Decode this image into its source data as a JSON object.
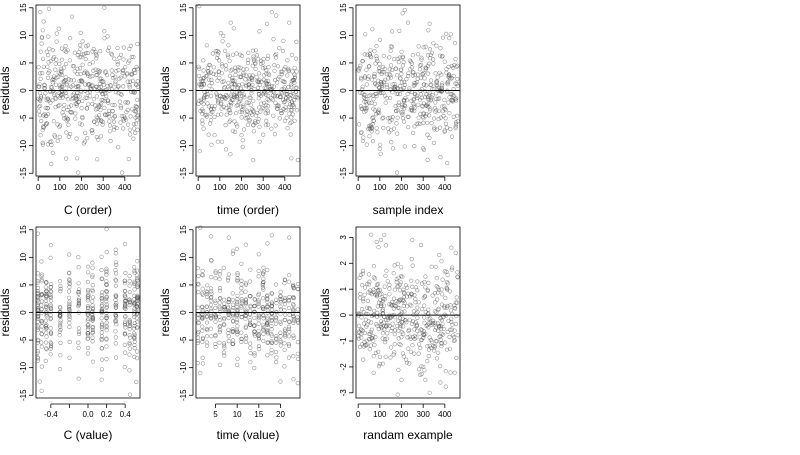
{
  "chart_data": [
    {
      "type": "scatter",
      "xlabel": "C (order)",
      "ylabel": "residuals",
      "xlim": [
        -10,
        470
      ],
      "ylim": [
        -15.5,
        15.5
      ],
      "xticks": [
        0,
        100,
        200,
        300,
        400
      ],
      "yticks": [
        -15,
        -10,
        -5,
        0,
        5,
        10,
        15
      ],
      "hline": 0,
      "n_points": 460,
      "series": [
        {
          "points": [
            [
              10,
              14.2
            ],
            [
              16,
              8.5
            ],
            [
              22,
              -9.8
            ],
            [
              25,
              12.5
            ],
            [
              48,
              5.1
            ],
            [
              60,
              -13.3
            ],
            [
              78,
              -8.4
            ],
            [
              95,
              11.2
            ],
            [
              110,
              7.6
            ],
            [
              140,
              -6.2
            ],
            [
              165,
              4.4
            ],
            [
              180,
              -12.3
            ],
            [
              205,
              8.9
            ],
            [
              230,
              6.8
            ],
            [
              250,
              -7.2
            ],
            [
              272,
              -6.0
            ],
            [
              290,
              -8.3
            ],
            [
              305,
              15.0
            ],
            [
              320,
              9.8
            ],
            [
              350,
              -7.1
            ],
            [
              380,
              -5.8
            ],
            [
              395,
              7.8
            ],
            [
              420,
              5.4
            ],
            [
              448,
              3.2
            ],
            [
              458,
              -4.7
            ]
          ]
        }
      ],
      "point_spread_sd": 4.5
    },
    {
      "type": "scatter",
      "xlabel": "time (order)",
      "ylabel": "residuals",
      "xlim": [
        -10,
        470
      ],
      "ylim": [
        -15.5,
        15.5
      ],
      "xticks": [
        0,
        100,
        200,
        300,
        400
      ],
      "yticks": [
        -15,
        -10,
        -5,
        0,
        5,
        10,
        15
      ],
      "hline": 0,
      "n_points": 460,
      "series": [
        {
          "points": [
            [
              5,
              15.3
            ],
            [
              8,
              -11.0
            ],
            [
              40,
              8.2
            ],
            [
              55,
              -6.0
            ],
            [
              90,
              6.5
            ],
            [
              110,
              -9.3
            ],
            [
              150,
              12.3
            ],
            [
              170,
              -7.5
            ],
            [
              200,
              -8.1
            ],
            [
              230,
              5.0
            ],
            [
              255,
              -6.2
            ],
            [
              280,
              -5.2
            ],
            [
              300,
              -8.0
            ],
            [
              318,
              12.1
            ],
            [
              340,
              14.2
            ],
            [
              360,
              13.6
            ],
            [
              420,
              12.3
            ],
            [
              430,
              -12.3
            ],
            [
              445,
              -5.5
            ],
            [
              460,
              -12.6
            ]
          ]
        }
      ],
      "point_spread_sd": 4.2
    },
    {
      "type": "scatter",
      "xlabel": "sample index",
      "ylabel": "residuals",
      "xlim": [
        -10,
        470
      ],
      "ylim": [
        -15.5,
        15.5
      ],
      "xticks": [
        0,
        100,
        200,
        300,
        400
      ],
      "yticks": [
        -15,
        -10,
        -5,
        0,
        5,
        10,
        15
      ],
      "hline": 0,
      "n_points": 460,
      "series": [
        {
          "points": [
            [
              10,
              4.5
            ],
            [
              40,
              -9.8
            ],
            [
              90,
              -4.0
            ],
            [
              150,
              7.2
            ],
            [
              190,
              10.8
            ],
            [
              205,
              14.0
            ],
            [
              215,
              14.6
            ],
            [
              230,
              12.3
            ],
            [
              260,
              -6.5
            ],
            [
              300,
              -10.5
            ],
            [
              320,
              -8.0
            ],
            [
              350,
              -9.5
            ],
            [
              380,
              -12.1
            ],
            [
              420,
              9.5
            ],
            [
              450,
              -6.5
            ]
          ]
        }
      ],
      "point_spread_sd": 4.6
    },
    {
      "type": "scatter",
      "xlabel": "C (value)",
      "ylabel": "residuals",
      "xlim": [
        -0.56,
        0.56
      ],
      "ylim": [
        -15.5,
        15.5
      ],
      "xticks": [
        -0.4,
        -0.2,
        0.0,
        0.2,
        0.4
      ],
      "xtick_labels": [
        "-0.4",
        "",
        "0.0",
        "0.2",
        "0.4"
      ],
      "yticks": [
        -15,
        -10,
        -5,
        0,
        5,
        10,
        15
      ],
      "hline": 0,
      "n_points": 460,
      "x_levels": [
        -0.54,
        -0.5,
        -0.45,
        -0.4,
        -0.3,
        -0.2,
        -0.1,
        0.0,
        0.05,
        0.15,
        0.2,
        0.3,
        0.4,
        0.45,
        0.5,
        0.53
      ],
      "series": [
        {
          "points": [
            [
              -0.54,
              14.3
            ],
            [
              -0.52,
              -12.5
            ],
            [
              -0.5,
              -14.2
            ],
            [
              -0.4,
              12.2
            ],
            [
              -0.1,
              -12.0
            ],
            [
              0.15,
              -10.3
            ],
            [
              0.2,
              15.1
            ],
            [
              0.4,
              12.4
            ],
            [
              0.5,
              7.5
            ],
            [
              0.52,
              -12.6
            ]
          ]
        }
      ],
      "point_spread_sd": 4.5
    },
    {
      "type": "scatter",
      "xlabel": "time (value)",
      "ylabel": "residuals",
      "xlim": [
        0.5,
        24.5
      ],
      "ylim": [
        -15.5,
        15.5
      ],
      "xticks": [
        5,
        10,
        15,
        20
      ],
      "yticks": [
        -15,
        -10,
        -5,
        0,
        5,
        10,
        15
      ],
      "hline": 0,
      "n_points": 460,
      "x_levels": [
        1,
        2,
        3,
        4,
        5,
        6,
        7,
        8,
        9,
        10,
        11,
        12,
        13,
        14,
        15,
        16,
        17,
        18,
        19,
        20,
        21,
        22,
        23,
        24
      ],
      "series": [
        {
          "points": [
            [
              1.5,
              15.4
            ],
            [
              1.5,
              -11.0
            ],
            [
              4,
              9.5
            ],
            [
              7,
              -6.0
            ],
            [
              10,
              -9.5
            ],
            [
              12,
              12.3
            ],
            [
              14,
              -7.8
            ],
            [
              17,
              12.5
            ],
            [
              18,
              14.0
            ],
            [
              19,
              -9.0
            ],
            [
              20,
              -12.5
            ],
            [
              22,
              13.6
            ],
            [
              23,
              -12.1
            ],
            [
              24,
              -12.8
            ]
          ]
        }
      ],
      "point_spread_sd": 4.3
    },
    {
      "type": "scatter",
      "xlabel": "randam example",
      "ylabel": "residuals",
      "xlim": [
        -10,
        470
      ],
      "ylim": [
        -3.2,
        3.4
      ],
      "xticks": [
        0,
        100,
        200,
        300,
        400
      ],
      "yticks": [
        -3,
        -2,
        -1,
        0,
        1,
        2,
        3
      ],
      "hline": 0,
      "n_points": 460,
      "series": [
        {
          "points": [
            [
              60,
              3.1
            ],
            [
              105,
              2.9
            ],
            [
              120,
              3.1
            ],
            [
              200,
              -2.5
            ],
            [
              250,
              2.9
            ],
            [
              290,
              2.7
            ],
            [
              310,
              -2.5
            ],
            [
              330,
              -3.0
            ],
            [
              380,
              -2.6
            ],
            [
              430,
              2.6
            ],
            [
              450,
              2.4
            ]
          ]
        }
      ],
      "point_spread_sd": 1.0
    }
  ]
}
